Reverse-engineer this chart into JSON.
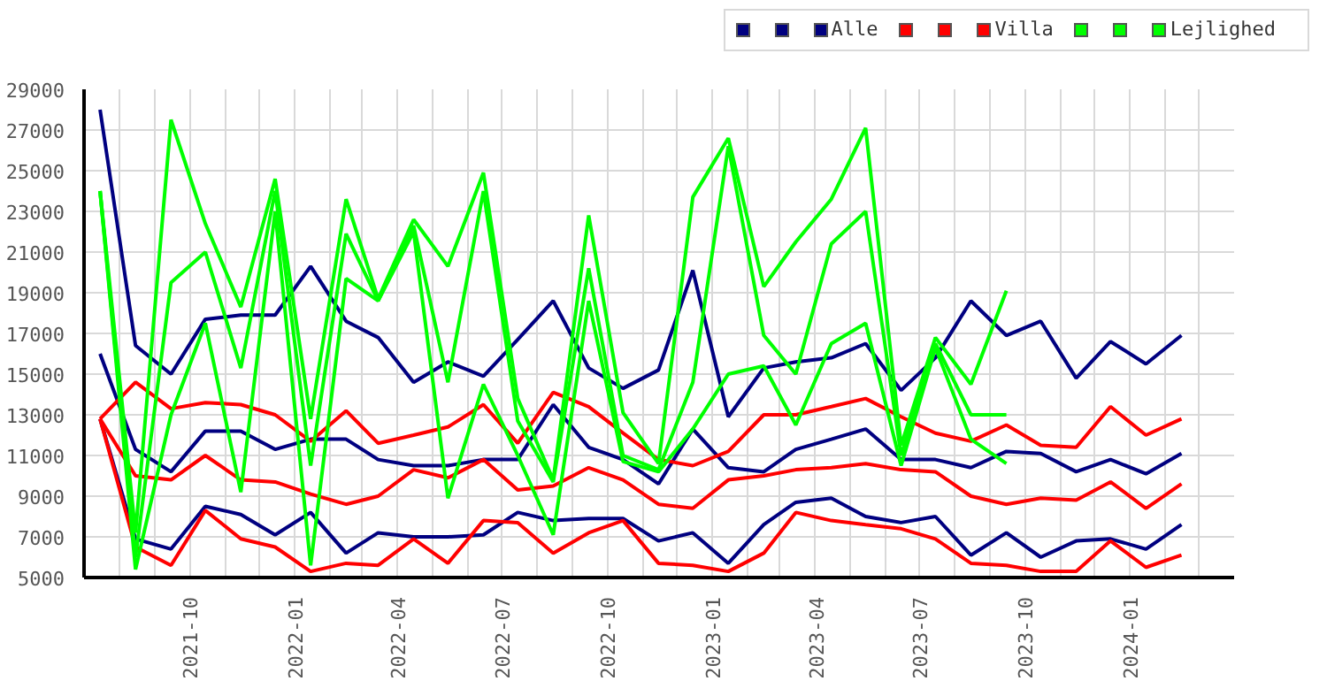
{
  "chart_data": {
    "type": "line",
    "x": [
      "2021-07-15",
      "2021-08-15",
      "2021-09-15",
      "2021-10-15",
      "2021-11-15",
      "2021-12-15",
      "2022-01-15",
      "2022-02-15",
      "2022-03-15",
      "2022-04-15",
      "2022-05-15",
      "2022-06-15",
      "2022-07-15",
      "2022-08-15",
      "2022-09-15",
      "2022-10-15",
      "2022-11-15",
      "2022-12-15",
      "2023-01-15",
      "2023-02-15",
      "2023-03-15",
      "2023-04-15",
      "2023-05-15",
      "2023-06-15",
      "2023-07-15",
      "2023-08-15",
      "2023-09-15",
      "2023-10-15",
      "2023-11-15",
      "2023-12-15",
      "2024-01-15",
      "2024-02-15"
    ],
    "series": [
      {
        "color": "#000080",
        "values": [
          28000,
          16400,
          15000,
          17700,
          17900,
          17900,
          20300,
          17600,
          16800,
          14600,
          15600,
          14900,
          16700,
          18600,
          15300,
          14300,
          15200,
          20100,
          12900,
          15300,
          15600,
          15800,
          16500,
          14200,
          15800,
          18600,
          16900,
          17600,
          14800,
          16600,
          15500,
          16900
        ]
      },
      {
        "color": "#000080",
        "values": [
          16000,
          11300,
          10200,
          12200,
          12200,
          11300,
          11800,
          11800,
          10800,
          10500,
          10500,
          10800,
          10800,
          13500,
          11400,
          10800,
          9600,
          12300,
          10400,
          10200,
          11300,
          11800,
          12300,
          10800,
          10800,
          10400,
          11200,
          11100,
          10200,
          10800,
          10100,
          11100
        ]
      },
      {
        "name": "Alle",
        "color": "#000080",
        "values": [
          12800,
          6900,
          6400,
          8500,
          8100,
          7100,
          8200,
          6200,
          7200,
          7000,
          7000,
          7100,
          8200,
          7800,
          7900,
          7900,
          6800,
          7200,
          5700,
          7600,
          8700,
          8900,
          8000,
          7700,
          8000,
          6100,
          7200,
          6000,
          6800,
          6900,
          6400,
          7600
        ]
      },
      {
        "color": "#ff0000",
        "values": [
          12800,
          14600,
          13300,
          13600,
          13500,
          13000,
          11700,
          13200,
          11600,
          12000,
          12400,
          13500,
          11600,
          14100,
          13400,
          12100,
          10800,
          10500,
          11200,
          13000,
          13000,
          13400,
          13800,
          12900,
          12100,
          11700,
          12500,
          11500,
          11400,
          13400,
          12000,
          12800
        ]
      },
      {
        "color": "#ff0000",
        "values": [
          12800,
          10000,
          9800,
          11000,
          9800,
          9700,
          9100,
          8600,
          9000,
          10300,
          9900,
          10800,
          9300,
          9500,
          10400,
          9800,
          8600,
          8400,
          9800,
          10000,
          10300,
          10400,
          10600,
          10300,
          10200,
          9000,
          8600,
          8900,
          8800,
          9700,
          8400,
          9600
        ]
      },
      {
        "name": "Villa",
        "color": "#ff0000",
        "values": [
          12800,
          6500,
          5600,
          8300,
          6900,
          6500,
          5300,
          5700,
          5600,
          6900,
          5700,
          7800,
          7700,
          6200,
          7200,
          7800,
          5700,
          5600,
          5300,
          6200,
          8200,
          7800,
          7600,
          7400,
          6900,
          5700,
          5600,
          5300,
          5300,
          6800,
          5500,
          6100
        ]
      },
      {
        "color": "#00ff00",
        "values": [
          24000,
          7200,
          27500,
          22400,
          18300,
          24600,
          12800,
          23600,
          18700,
          22600,
          20300,
          24900,
          13800,
          9800,
          22800,
          13100,
          10600,
          23700,
          26600,
          19300,
          21500,
          23600,
          27100,
          11500,
          16800,
          14500,
          19100,
          null,
          null,
          null,
          null,
          null
        ]
      },
      {
        "color": "#00ff00",
        "values": [
          24000,
          6000,
          19500,
          21000,
          15300,
          24000,
          10500,
          21900,
          18600,
          22300,
          14600,
          24000,
          12700,
          9700,
          20200,
          11000,
          10300,
          14600,
          26200,
          16900,
          15000,
          21400,
          23000,
          11000,
          16500,
          13000,
          13000,
          null,
          null,
          null,
          null,
          null
        ]
      },
      {
        "name": "Lejlighed",
        "color": "#00ff00",
        "values": [
          24000,
          5400,
          13000,
          17500,
          9200,
          23000,
          5600,
          19700,
          18600,
          22000,
          8900,
          14500,
          11000,
          7100,
          18600,
          10700,
          10200,
          12300,
          15000,
          15400,
          12500,
          16500,
          17500,
          10500,
          16300,
          11800,
          10600,
          null,
          null,
          null,
          null,
          null
        ]
      }
    ],
    "xlim": [
      "2021-07",
      "2024-04"
    ],
    "xticks": [
      {
        "value": "2021-08",
        "label": null
      },
      {
        "value": "2021-09",
        "label": null
      },
      "2021-10",
      {
        "value": "2021-11",
        "label": null
      },
      {
        "value": "2021-12",
        "label": null
      },
      "2022-01",
      {
        "value": "2022-02",
        "label": null
      },
      {
        "value": "2022-03",
        "label": null
      },
      "2022-04",
      {
        "value": "2022-05",
        "label": null
      },
      {
        "value": "2022-06",
        "label": null
      },
      "2022-07",
      {
        "value": "2022-08",
        "label": null
      },
      {
        "value": "2022-09",
        "label": null
      },
      "2022-10",
      {
        "value": "2022-11",
        "label": null
      },
      {
        "value": "2022-12",
        "label": null
      },
      "2023-01",
      {
        "value": "2023-02",
        "label": null
      },
      {
        "value": "2023-03",
        "label": null
      },
      "2023-04",
      {
        "value": "2023-05",
        "label": null
      },
      {
        "value": "2023-06",
        "label": null
      },
      "2023-07",
      {
        "value": "2023-08",
        "label": null
      },
      {
        "value": "2023-09",
        "label": null
      },
      "2023-10",
      {
        "value": "2023-11",
        "label": null
      },
      {
        "value": "2023-12",
        "label": null
      },
      "2024-01",
      {
        "value": "2024-02",
        "label": null
      },
      {
        "value": "2024-03",
        "label": null
      }
    ],
    "ylim": [
      5000,
      29000
    ],
    "yticks": [
      5000,
      7000,
      9000,
      11000,
      13000,
      15000,
      17000,
      19000,
      21000,
      23000,
      25000,
      27000,
      29000
    ],
    "grid": true,
    "legend": "top right",
    "marker": "none",
    "line_style": "solid"
  }
}
